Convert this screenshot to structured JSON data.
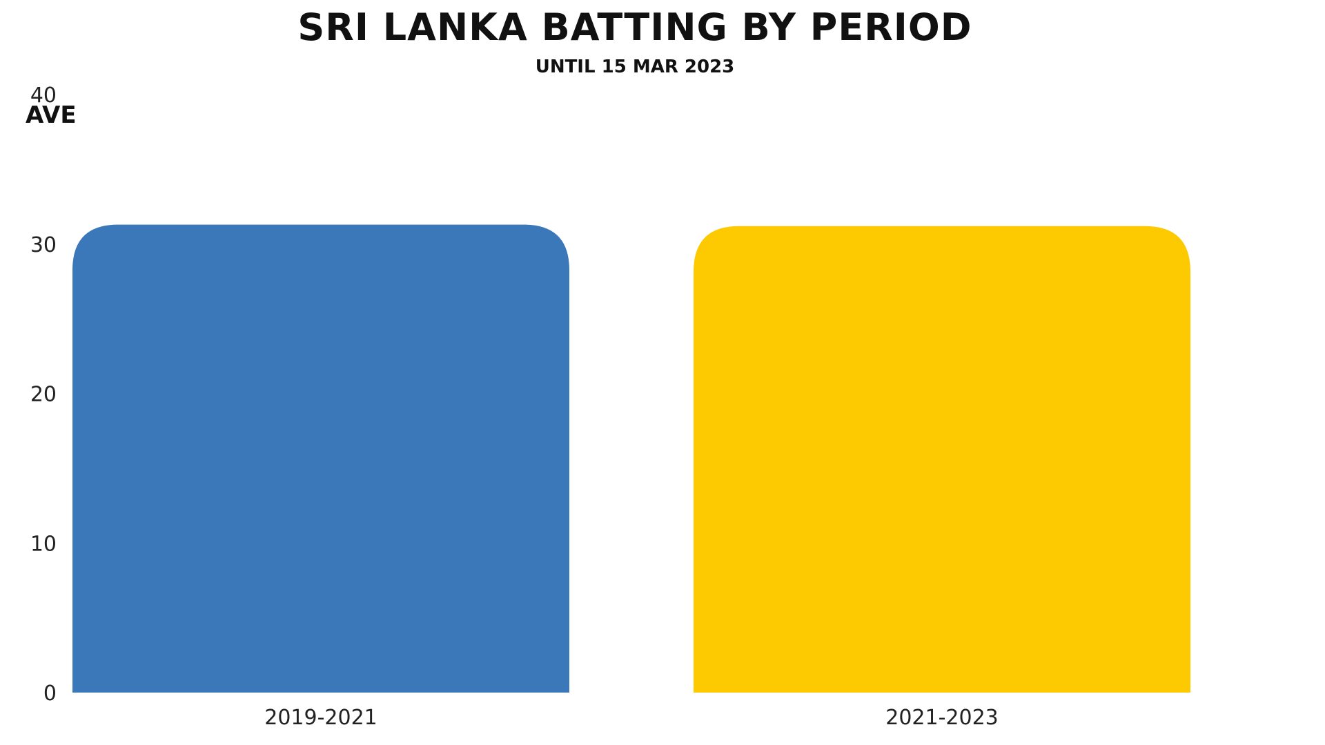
{
  "chart_data": {
    "type": "bar",
    "title": "SRI LANKA BATTING BY PERIOD",
    "subtitle": "UNTIL 15 MAR 2023",
    "ylabel": "AVE",
    "xlabel": "",
    "categories": [
      "2019-2021",
      "2021-2023"
    ],
    "values": [
      31.3,
      31.2
    ],
    "colors": [
      "#3B78BA",
      "#FDCA02"
    ],
    "ylim": [
      0,
      40
    ],
    "yticks": [
      "0",
      "10",
      "20",
      "30",
      "40"
    ],
    "grid": false
  }
}
